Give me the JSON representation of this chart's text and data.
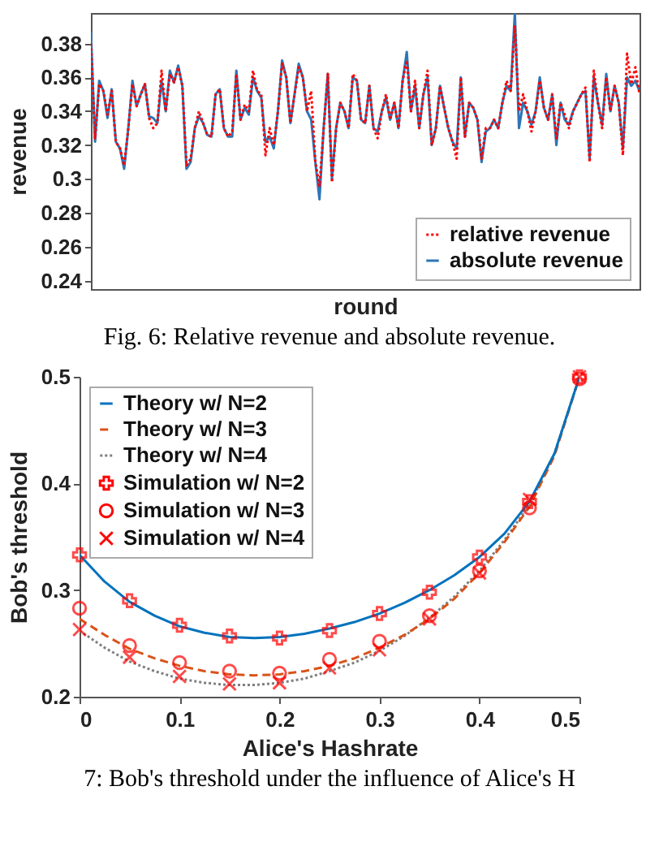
{
  "chart_data": [
    {
      "type": "line",
      "xlabel": "round",
      "ylabel": "revenue",
      "ylim": [
        0.235,
        0.398
      ],
      "yticks": [
        0.24,
        0.26,
        0.28,
        0.3,
        0.32,
        0.34,
        0.36,
        0.38
      ],
      "grid": false,
      "legend": "bottom right",
      "annotations": [
        "Fig. 6: Relative revenue and absolute revenue."
      ],
      "categories": [
        null,
        null,
        null,
        null,
        null,
        null,
        null,
        null,
        null,
        null,
        null,
        null,
        null,
        null,
        null,
        null,
        null,
        null,
        null,
        null,
        null,
        null,
        null,
        null,
        null,
        null,
        null,
        null,
        null,
        null,
        null,
        null,
        null,
        null,
        null,
        null,
        null,
        null,
        null,
        null,
        null,
        null,
        null,
        null,
        null,
        null,
        null,
        null,
        null,
        null,
        null,
        null,
        null,
        null,
        null,
        null,
        null,
        null,
        null,
        null,
        null,
        null,
        null,
        null,
        null,
        null,
        null,
        null,
        null,
        null,
        null,
        null,
        null,
        null,
        null,
        null,
        null,
        null,
        null,
        null,
        null,
        null,
        null,
        null,
        null,
        null,
        null,
        null,
        null,
        null,
        null,
        null,
        null,
        null,
        null,
        null,
        null,
        null,
        null,
        null,
        null,
        null,
        null,
        null,
        null,
        null,
        null,
        null,
        null,
        null,
        null,
        null,
        null,
        null,
        null,
        null,
        null,
        null,
        null,
        null,
        null,
        null,
        null,
        null,
        null,
        null,
        null,
        null,
        null,
        null,
        null,
        null,
        null
      ],
      "series": [
        {
          "name": "relative revenue",
          "color": "#ff0000",
          "line_style": "dotted",
          "values": [
            0.38,
            0.324,
            0.356,
            0.352,
            0.338,
            0.352,
            0.322,
            0.318,
            0.308,
            0.33,
            0.356,
            0.343,
            0.35,
            0.356,
            0.336,
            0.33,
            0.333,
            0.364,
            0.34,
            0.362,
            0.357,
            0.366,
            0.355,
            0.308,
            0.312,
            0.33,
            0.34,
            0.333,
            0.326,
            0.325,
            0.35,
            0.353,
            0.33,
            0.325,
            0.328,
            0.362,
            0.335,
            0.344,
            0.34,
            0.364,
            0.352,
            0.35,
            0.314,
            0.33,
            0.32,
            0.34,
            0.368,
            0.36,
            0.333,
            0.35,
            0.366,
            0.36,
            0.34,
            0.352,
            0.31,
            0.296,
            0.33,
            0.362,
            0.298,
            0.33,
            0.345,
            0.34,
            0.33,
            0.362,
            0.358,
            0.335,
            0.333,
            0.355,
            0.33,
            0.324,
            0.34,
            0.35,
            0.335,
            0.345,
            0.33,
            0.358,
            0.37,
            0.34,
            0.358,
            0.33,
            0.35,
            0.364,
            0.32,
            0.33,
            0.355,
            0.342,
            0.33,
            0.322,
            0.312,
            0.36,
            0.325,
            0.345,
            0.342,
            0.335,
            0.312,
            0.33,
            0.33,
            0.335,
            0.33,
            0.345,
            0.358,
            0.352,
            0.39,
            0.34,
            0.35,
            0.34,
            0.328,
            0.34,
            0.358,
            0.342,
            0.335,
            0.35,
            0.324,
            0.345,
            0.338,
            0.33,
            0.34,
            0.345,
            0.35,
            0.354,
            0.31,
            0.364,
            0.345,
            0.33,
            0.36,
            0.34,
            0.355,
            0.345,
            0.314,
            0.374,
            0.356,
            0.366,
            0.35
          ]
        },
        {
          "name": "absolute revenue",
          "color": "#2e75b6",
          "line_style": "solid",
          "values": [
            0.387,
            0.322,
            0.358,
            0.352,
            0.336,
            0.353,
            0.322,
            0.318,
            0.306,
            0.33,
            0.358,
            0.343,
            0.35,
            0.356,
            0.337,
            0.336,
            0.333,
            0.358,
            0.34,
            0.364,
            0.357,
            0.367,
            0.355,
            0.306,
            0.31,
            0.33,
            0.337,
            0.333,
            0.326,
            0.325,
            0.35,
            0.353,
            0.33,
            0.325,
            0.325,
            0.364,
            0.335,
            0.342,
            0.338,
            0.36,
            0.352,
            0.348,
            0.322,
            0.325,
            0.318,
            0.34,
            0.37,
            0.36,
            0.333,
            0.35,
            0.368,
            0.36,
            0.34,
            0.335,
            0.31,
            0.288,
            0.33,
            0.362,
            0.3,
            0.33,
            0.345,
            0.34,
            0.33,
            0.36,
            0.358,
            0.335,
            0.333,
            0.355,
            0.33,
            0.328,
            0.34,
            0.348,
            0.335,
            0.345,
            0.33,
            0.358,
            0.375,
            0.34,
            0.355,
            0.33,
            0.35,
            0.36,
            0.32,
            0.33,
            0.355,
            0.342,
            0.33,
            0.322,
            0.318,
            0.36,
            0.325,
            0.345,
            0.342,
            0.335,
            0.31,
            0.328,
            0.33,
            0.335,
            0.33,
            0.345,
            0.355,
            0.352,
            0.398,
            0.33,
            0.345,
            0.34,
            0.332,
            0.34,
            0.36,
            0.342,
            0.335,
            0.35,
            0.32,
            0.345,
            0.335,
            0.332,
            0.34,
            0.345,
            0.35,
            0.352,
            0.312,
            0.36,
            0.345,
            0.332,
            0.362,
            0.34,
            0.355,
            0.345,
            0.318,
            0.36,
            0.355,
            0.358,
            0.352
          ]
        }
      ]
    },
    {
      "type": "line",
      "xlabel": "Alice's Hashrate",
      "ylabel": "Bob's threshold",
      "xlim": [
        0,
        0.5
      ],
      "xticks": [
        0,
        0.1,
        0.2,
        0.3,
        0.4,
        0.5
      ],
      "ylim": [
        0.2,
        0.5
      ],
      "yticks": [
        0.2,
        0.3,
        0.4,
        0.5
      ],
      "grid": false,
      "legend": "top left",
      "annotations": [
        "7: Bob's threshold under the influence of Alice's H"
      ],
      "series": [
        {
          "name": "Theory w/ N=2",
          "color": "#0072bd",
          "line_style": "solid",
          "x": [
            0,
            0.025,
            0.05,
            0.075,
            0.1,
            0.125,
            0.15,
            0.175,
            0.2,
            0.225,
            0.25,
            0.275,
            0.3,
            0.325,
            0.35,
            0.375,
            0.4,
            0.425,
            0.45,
            0.475,
            0.5
          ],
          "values": [
            0.333,
            0.308,
            0.289,
            0.276,
            0.266,
            0.26,
            0.256,
            0.255,
            0.256,
            0.259,
            0.264,
            0.27,
            0.278,
            0.288,
            0.3,
            0.314,
            0.331,
            0.353,
            0.383,
            0.428,
            0.5
          ]
        },
        {
          "name": "Theory w/ N=3",
          "color": "#d95319",
          "line_style": "dashed",
          "x": [
            0,
            0.025,
            0.05,
            0.075,
            0.1,
            0.125,
            0.15,
            0.175,
            0.2,
            0.225,
            0.25,
            0.275,
            0.3,
            0.325,
            0.35,
            0.375,
            0.4,
            0.425,
            0.45,
            0.475,
            0.5
          ],
          "values": [
            0.273,
            0.258,
            0.245,
            0.236,
            0.229,
            0.224,
            0.221,
            0.22,
            0.221,
            0.224,
            0.229,
            0.236,
            0.246,
            0.258,
            0.273,
            0.292,
            0.316,
            0.345,
            0.378,
            0.426,
            0.5
          ]
        },
        {
          "name": "Theory w/ N=4",
          "color": "#7f7f7f",
          "line_style": "dotted",
          "x": [
            0,
            0.025,
            0.05,
            0.075,
            0.1,
            0.125,
            0.15,
            0.175,
            0.2,
            0.225,
            0.25,
            0.275,
            0.3,
            0.325,
            0.35,
            0.375,
            0.4,
            0.425,
            0.45,
            0.475,
            0.5
          ],
          "values": [
            0.262,
            0.246,
            0.233,
            0.224,
            0.217,
            0.213,
            0.211,
            0.211,
            0.213,
            0.217,
            0.224,
            0.232,
            0.243,
            0.257,
            0.274,
            0.294,
            0.318,
            0.347,
            0.38,
            0.428,
            0.5
          ]
        },
        {
          "name": "Simulation w/ N=2",
          "type": "scatter",
          "marker": "cross",
          "color": "#ff0000",
          "x": [
            0,
            0.05,
            0.1,
            0.15,
            0.2,
            0.25,
            0.3,
            0.35,
            0.4,
            0.45,
            0.5
          ],
          "values": [
            0.333,
            0.29,
            0.267,
            0.257,
            0.255,
            0.262,
            0.278,
            0.298,
            0.331,
            0.383,
            0.5
          ]
        },
        {
          "name": "Simulation w/ N=3",
          "type": "scatter",
          "marker": "circle",
          "color": "#ff0000",
          "x": [
            0,
            0.05,
            0.1,
            0.15,
            0.2,
            0.25,
            0.3,
            0.35,
            0.4,
            0.45,
            0.5
          ],
          "values": [
            0.283,
            0.248,
            0.232,
            0.224,
            0.222,
            0.235,
            0.252,
            0.276,
            0.318,
            0.377,
            0.498
          ]
        },
        {
          "name": "Simulation w/ N=4",
          "type": "scatter",
          "marker": "x",
          "color": "#ff0000",
          "x": [
            0,
            0.05,
            0.1,
            0.15,
            0.2,
            0.25,
            0.3,
            0.35,
            0.4,
            0.45,
            0.5
          ],
          "values": [
            0.263,
            0.237,
            0.219,
            0.212,
            0.213,
            0.227,
            0.244,
            0.273,
            0.316,
            0.385,
            0.5
          ]
        }
      ]
    }
  ]
}
